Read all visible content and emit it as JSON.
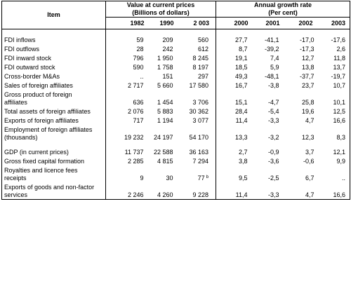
{
  "header": {
    "item": "Item",
    "group_value": "Value at current prices",
    "group_value_sub": "(Billions of dollars)",
    "group_growth": "Annual growth rate",
    "group_growth_sub": "(Per cent)",
    "years": [
      "1982",
      "1990",
      "2 003",
      "2000",
      "2001",
      "2002",
      "2003"
    ]
  },
  "rows": [
    {
      "label": "FDI inflows",
      "values": [
        "59",
        "209",
        "560",
        "27,7",
        "-41,1",
        "-17,0",
        "-17,6"
      ]
    },
    {
      "label": "FDI outflows",
      "values": [
        "28",
        "242",
        "612",
        "8,7",
        "-39,2",
        "-17,3",
        "2,6"
      ]
    },
    {
      "label": "FDI inward stock",
      "values": [
        "796",
        "1 950",
        "8 245",
        "19,1",
        "7,4",
        "12,7",
        "11,8"
      ]
    },
    {
      "label": "FDI outward stock",
      "values": [
        "590",
        "1 758",
        "8 197",
        "18,5",
        "5,9",
        "13,8",
        "13,7"
      ]
    },
    {
      "label": "Cross-border M&As",
      "values": [
        "..",
        "151",
        "297",
        "49,3",
        "-48,1",
        "-37,7",
        "-19,7"
      ]
    },
    {
      "label": "Sales of foreign affiliates",
      "values": [
        "2 717",
        "5 660",
        "17 580",
        "16,7",
        "-3,8",
        "23,7",
        "10,7"
      ]
    },
    {
      "label_line1": "Gross product of foreign",
      "label_line2": "affiliates",
      "values": [
        "636",
        "1 454",
        "3 706",
        "15,1",
        "-4,7",
        "25,8",
        "10,1"
      ]
    },
    {
      "label": "Total assets of foreign affiliates",
      "values": [
        "2 076",
        "5 883",
        "30 362",
        "28,4",
        "-5,4",
        "19,6",
        "12,5"
      ]
    },
    {
      "label": "Exports of foreign affiliates",
      "values": [
        "717",
        "1 194",
        "3 077",
        "11,4",
        "-3,3",
        "4,7",
        "16,6"
      ]
    },
    {
      "label_line1": "Employment of foreign affiliates",
      "label_line2": "(thousands)",
      "values": [
        "19 232",
        "24 197",
        "54 170",
        "13,3",
        "-3,2",
        "12,3",
        "8,3"
      ]
    },
    {
      "label": "GDP (in current prices)",
      "values": [
        "11 737",
        "22 588",
        "36 163",
        "2,7",
        "-0,9",
        "3,7",
        "12,1"
      ]
    },
    {
      "label": "Gross fixed capital formation",
      "values": [
        "2 285",
        "4 815",
        "7 294",
        "3,8",
        "-3,6",
        "-0,6",
        "9,9"
      ]
    },
    {
      "label_line1": "Royalties and licence fees",
      "label_line2": "receipts",
      "values": [
        "9",
        "30",
        "77",
        "9,5",
        "-2,5",
        "6,7",
        ".."
      ],
      "note": "b"
    },
    {
      "label_line1": "Exports of goods and non-factor",
      "label_line2": "services",
      "values": [
        "2 246",
        "4 260",
        "9 228",
        "11,4",
        "-3,3",
        "4,7",
        "16,6"
      ]
    }
  ]
}
